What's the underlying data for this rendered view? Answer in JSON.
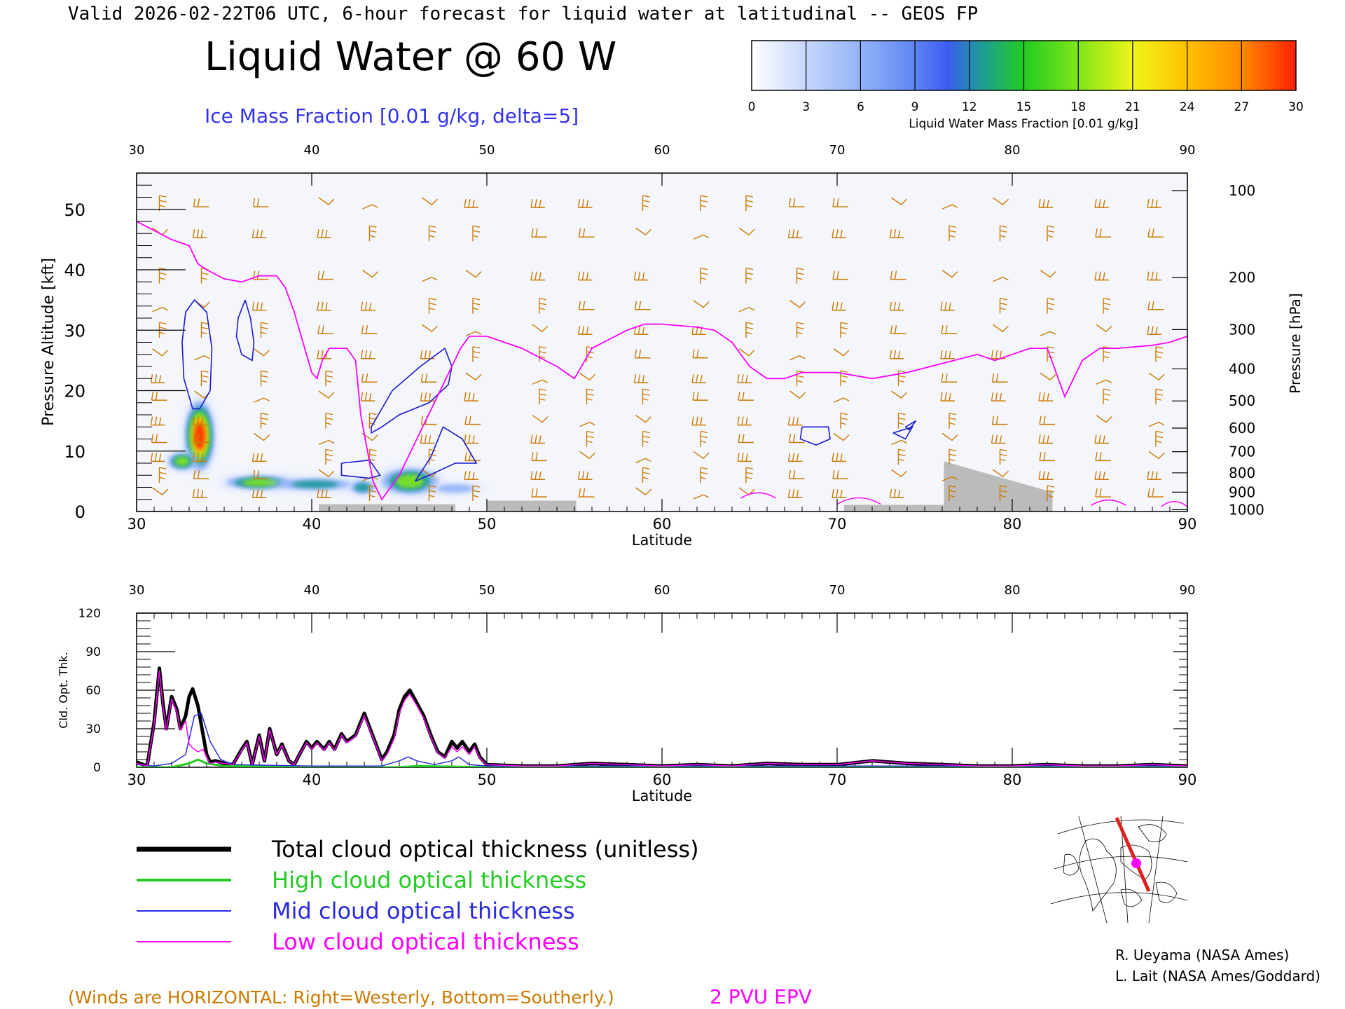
{
  "header": {
    "valid_line": "Valid 2026-02-22T06 UTC, 6-hour forecast for liquid water at latitudinal -- GEOS FP",
    "main_title": "Liquid Water @ 60 W",
    "contour_label": "Ice Mass Fraction [0.01 g/kg, delta=5]"
  },
  "colorbar": {
    "ticks": [
      "0",
      "3",
      "6",
      "9",
      "12",
      "15",
      "18",
      "21",
      "24",
      "27",
      "30"
    ],
    "label": "Liquid Water Mass Fraction [0.01 g/kg]",
    "colors": [
      "#f8f9ff",
      "#c6d6fb",
      "#93b3f8",
      "#5e86f2",
      "#1e9a9a",
      "#22cc22",
      "#7fe51a",
      "#eef51a",
      "#ffc100",
      "#ff8a00",
      "#ff3000"
    ]
  },
  "footer": {
    "winds_note": "(Winds are HORIZONTAL: Right=Westerly, Bottom=Southerly.)",
    "pv_label": "2 PVU EPV",
    "credit1": "R. Ueyama (NASA Ames)",
    "credit2": "L. Lait (NASA Ames/Goddard)"
  },
  "legend": [
    {
      "label": "Total cloud optical thickness (unitless)",
      "color": "#000000"
    },
    {
      "label": "High cloud optical thickness",
      "color": "#22cc22"
    },
    {
      "label": "Mid cloud optical thickness",
      "color": "#2a2ae0"
    },
    {
      "label": "Low cloud optical thickness",
      "color": "#ff00ff"
    }
  ],
  "colors": {
    "wind": "#cc7a00",
    "pv": "#ff00ff",
    "ice": "#1a1acc",
    "terrain": "#bbbbbb"
  },
  "chart_data": [
    {
      "type": "contour",
      "xlabel": "Latitude",
      "ylabel": "Pressure Altitude [kft]",
      "ylabel_right": "Pressure [hPa]",
      "xlim": [
        30,
        90
      ],
      "ylim": [
        0,
        56
      ],
      "x_ticks": [
        "30",
        "40",
        "50",
        "60",
        "70",
        "80",
        "90"
      ],
      "y_ticks": [
        "0",
        "10",
        "20",
        "30",
        "40",
        "50"
      ],
      "pressure_ticks": [
        {
          "label": "100",
          "kft": 53.1
        },
        {
          "label": "200",
          "kft": 38.7
        },
        {
          "label": "300",
          "kft": 30.1
        },
        {
          "label": "400",
          "kft": 23.6
        },
        {
          "label": "500",
          "kft": 18.3
        },
        {
          "label": "600",
          "kft": 13.8
        },
        {
          "label": "700",
          "kft": 9.9
        },
        {
          "label": "800",
          "kft": 6.4
        },
        {
          "label": "900",
          "kft": 3.2
        },
        {
          "label": "1000",
          "kft": 0.3
        }
      ],
      "pv_2pvu": {
        "lat": [
          30,
          31,
          32,
          33,
          33.5,
          34,
          35,
          36,
          37,
          38,
          38.5,
          39,
          39.5,
          40,
          40.3,
          40.6,
          41,
          42,
          42.5,
          42.8,
          43.5,
          44,
          45,
          46,
          47,
          48,
          48.5,
          49,
          50,
          52,
          54,
          55,
          56,
          58,
          59,
          60,
          62,
          63,
          64,
          65,
          66,
          67,
          68,
          70,
          72,
          74,
          76,
          78,
          79,
          80,
          81,
          82,
          82.5,
          83,
          84,
          85,
          86,
          88,
          89,
          90
        ],
        "alt": [
          48,
          46.5,
          45,
          44,
          41,
          40,
          38.5,
          38,
          39,
          39,
          37,
          33,
          28,
          23,
          22,
          25,
          27,
          27,
          25,
          16,
          5,
          2,
          6,
          12,
          18,
          24,
          27,
          29,
          29,
          27,
          24,
          22,
          27,
          30,
          31,
          31,
          30.5,
          30,
          28,
          24,
          22,
          22,
          23,
          23,
          22,
          23,
          24.5,
          26,
          25,
          26,
          27,
          27,
          23,
          19,
          25,
          27,
          27,
          27.5,
          28,
          29
        ]
      },
      "ice_contours": [
        {
          "lat": [
            32.8,
            33.3,
            34.0,
            34.3,
            34.2,
            33.6,
            33.2,
            33.0,
            32.7,
            32.6,
            32.8
          ],
          "alt": [
            33,
            35,
            33,
            27,
            20,
            17,
            17,
            19,
            22,
            28,
            33
          ]
        },
        {
          "lat": [
            36.2,
            36.5,
            36.7,
            36.6,
            36.0,
            35.7,
            35.8,
            36.2
          ],
          "alt": [
            35,
            32,
            28,
            25,
            26,
            29,
            32,
            35
          ]
        },
        {
          "lat": [
            43.4,
            44.6,
            46.2,
            47.6,
            48.0,
            47.8,
            46.7,
            45.0,
            44.0,
            43.4,
            43.4
          ],
          "alt": [
            14,
            20,
            24,
            27,
            24,
            21,
            18,
            16,
            14,
            13,
            14
          ]
        },
        {
          "lat": [
            45.9,
            46.8,
            47.5,
            48.6,
            49.4,
            48.2,
            46.7,
            45.9
          ],
          "alt": [
            5,
            9,
            14,
            12,
            8,
            8,
            6,
            5
          ]
        },
        {
          "lat": [
            41.7,
            43.3,
            43.9,
            43.3,
            41.7,
            41.7
          ],
          "alt": [
            8,
            8.5,
            6,
            5.5,
            6,
            8
          ]
        },
        {
          "lat": [
            68.0,
            69.5,
            69.6,
            68.8,
            67.9,
            68.0
          ],
          "alt": [
            14,
            14,
            12,
            11,
            12,
            14
          ]
        },
        {
          "lat": [
            73.2,
            74.3,
            73.9,
            73.2
          ],
          "alt": [
            13,
            14,
            12,
            13
          ]
        },
        {
          "lat": [
            73.9,
            74.5,
            74.1,
            73.9
          ],
          "alt": [
            14,
            15,
            13.5,
            14
          ]
        }
      ],
      "liquid_blobs": [
        {
          "lat": 33.6,
          "alt": 12.5,
          "rx": 0.55,
          "ry": 3.8,
          "level": 30
        },
        {
          "lat": 32.6,
          "alt": 8.3,
          "rx": 0.55,
          "ry": 1.0,
          "level": 18
        },
        {
          "lat": 37.0,
          "alt": 4.8,
          "rx": 1.3,
          "ry": 0.8,
          "level": 18
        },
        {
          "lat": 40.2,
          "alt": 4.5,
          "rx": 1.5,
          "ry": 0.7,
          "level": 16
        },
        {
          "lat": 42.9,
          "alt": 4.0,
          "rx": 0.5,
          "ry": 0.8,
          "level": 15
        },
        {
          "lat": 45.6,
          "alt": 5.0,
          "rx": 1.1,
          "ry": 1.5,
          "level": 21
        },
        {
          "lat": 48.2,
          "alt": 3.8,
          "rx": 0.9,
          "ry": 0.6,
          "level": 9
        }
      ],
      "terrain": {
        "lat": [
          30,
          40.4,
          40.4,
          48.2,
          48.2,
          50,
          50,
          55.1,
          55.1,
          70.4,
          70.4,
          76.1,
          76.1,
          82.3,
          82.3,
          90
        ],
        "alt": [
          0,
          0,
          1.2,
          1.2,
          0,
          0,
          1.8,
          1.8,
          0,
          0,
          1.1,
          1.1,
          8.3,
          3.2,
          0,
          0
        ]
      },
      "wind_columns": [
        31.3,
        33.7,
        37.1,
        40.8,
        43.3,
        46.7,
        49.2,
        53.0,
        55.7,
        58.9,
        62.2,
        64.8,
        67.7,
        70.2,
        73.5,
        76.4,
        79.3,
        82.0,
        85.2,
        88.2
      ],
      "wind_levels": [
        51,
        46,
        39,
        34,
        30,
        26,
        22,
        19,
        15,
        12,
        9,
        6,
        3
      ]
    },
    {
      "type": "line",
      "xlabel": "Latitude",
      "ylabel": "Cld. Opt. Thk.",
      "xlim": [
        30,
        90
      ],
      "ylim": [
        0,
        120
      ],
      "x_ticks": [
        "30",
        "40",
        "50",
        "60",
        "70",
        "80",
        "90"
      ],
      "y_ticks": [
        "0",
        "30",
        "60",
        "90",
        "120"
      ],
      "series": [
        {
          "x": [
            30,
            30.6,
            31.0,
            31.3,
            31.5,
            31.7,
            32.0,
            32.3,
            32.5,
            32.8,
            33.0,
            33.2,
            33.5,
            33.8,
            34.0,
            34.2,
            34.5,
            35.0,
            35.5,
            36.0,
            36.3,
            36.6,
            37.0,
            37.3,
            37.6,
            38.0,
            38.3,
            38.7,
            39.0,
            39.3,
            39.7,
            40.0,
            40.3,
            40.7,
            41.0,
            41.3,
            41.7,
            42.0,
            42.5,
            43.0,
            43.5,
            44.0,
            44.3,
            44.7,
            45.0,
            45.3,
            45.6,
            46.0,
            46.4,
            46.8,
            47.2,
            47.6,
            48.0,
            48.3,
            48.6,
            49.0,
            49.3,
            49.6,
            50,
            52,
            54,
            56,
            58,
            60,
            62,
            64,
            66,
            68,
            70,
            72,
            74,
            76,
            78,
            80,
            82,
            84,
            86,
            88,
            90
          ],
          "y": [
            4,
            1,
            35,
            77,
            50,
            30,
            55,
            45,
            30,
            40,
            55,
            61,
            48,
            25,
            10,
            4,
            5,
            3,
            2,
            14,
            20,
            2,
            25,
            5,
            30,
            10,
            18,
            5,
            2,
            10,
            20,
            15,
            20,
            14,
            20,
            14,
            26,
            20,
            25,
            42,
            24,
            6,
            12,
            25,
            45,
            55,
            60,
            50,
            40,
            25,
            12,
            8,
            20,
            15,
            20,
            12,
            18,
            8,
            2,
            1,
            1,
            3,
            2,
            1,
            2,
            1,
            3,
            2,
            2,
            5,
            3,
            2,
            1,
            1,
            2,
            1,
            1,
            2,
            1
          ]
        },
        {
          "x": [
            30,
            31,
            32,
            33,
            33.5,
            34,
            35,
            40,
            45,
            46,
            50,
            60,
            70,
            80,
            90
          ],
          "y": [
            0,
            0,
            0,
            3,
            6,
            3,
            1,
            0,
            0,
            1,
            0,
            0,
            0,
            0,
            0
          ]
        },
        {
          "x": [
            30,
            31,
            32,
            32.8,
            33.3,
            33.7,
            34.2,
            34.8,
            35.5,
            40,
            44,
            45,
            45.5,
            46,
            47,
            48,
            48.4,
            49,
            50,
            60,
            70,
            80,
            90
          ],
          "y": [
            2,
            1,
            3,
            10,
            40,
            42,
            20,
            6,
            2,
            1,
            1,
            5,
            8,
            5,
            2,
            5,
            8,
            2,
            1,
            1,
            1,
            1,
            1
          ]
        },
        {
          "x": [
            30,
            30.6,
            31.0,
            31.3,
            31.5,
            31.7,
            32.0,
            32.3,
            32.5,
            32.8,
            33.0,
            33.2,
            33.5,
            33.8,
            34.0,
            34.2,
            34.5,
            35.0,
            35.5,
            36.0,
            36.3,
            36.6,
            37.0,
            37.3,
            37.6,
            38.0,
            38.3,
            38.7,
            39.0,
            39.3,
            39.7,
            40.0,
            40.3,
            40.7,
            41.0,
            41.3,
            41.7,
            42.0,
            42.5,
            43.0,
            43.5,
            44.0,
            44.3,
            44.7,
            45.0,
            45.3,
            45.6,
            46.0,
            46.4,
            46.8,
            47.2,
            47.6,
            48.0,
            48.3,
            48.6,
            49.0,
            49.3,
            49.6,
            50,
            52,
            54,
            56,
            58,
            60,
            62,
            64,
            66,
            68,
            70,
            72,
            74,
            76,
            78,
            80,
            82,
            84,
            86,
            88,
            90
          ],
          "y": [
            3,
            1,
            33,
            75,
            48,
            29,
            53,
            43,
            29,
            36,
            18,
            15,
            12,
            14,
            8,
            3,
            4,
            3,
            2,
            13,
            19,
            2,
            24,
            5,
            29,
            10,
            17,
            5,
            2,
            10,
            19,
            14,
            19,
            13,
            19,
            13,
            25,
            19,
            24,
            40,
            23,
            5,
            10,
            22,
            42,
            52,
            57,
            48,
            38,
            24,
            11,
            7,
            16,
            12,
            16,
            10,
            16,
            7,
            2,
            1,
            1,
            3,
            2,
            1,
            2,
            1,
            3,
            2,
            2,
            5,
            3,
            2,
            1,
            1,
            2,
            1,
            1,
            2,
            1
          ]
        }
      ]
    }
  ]
}
